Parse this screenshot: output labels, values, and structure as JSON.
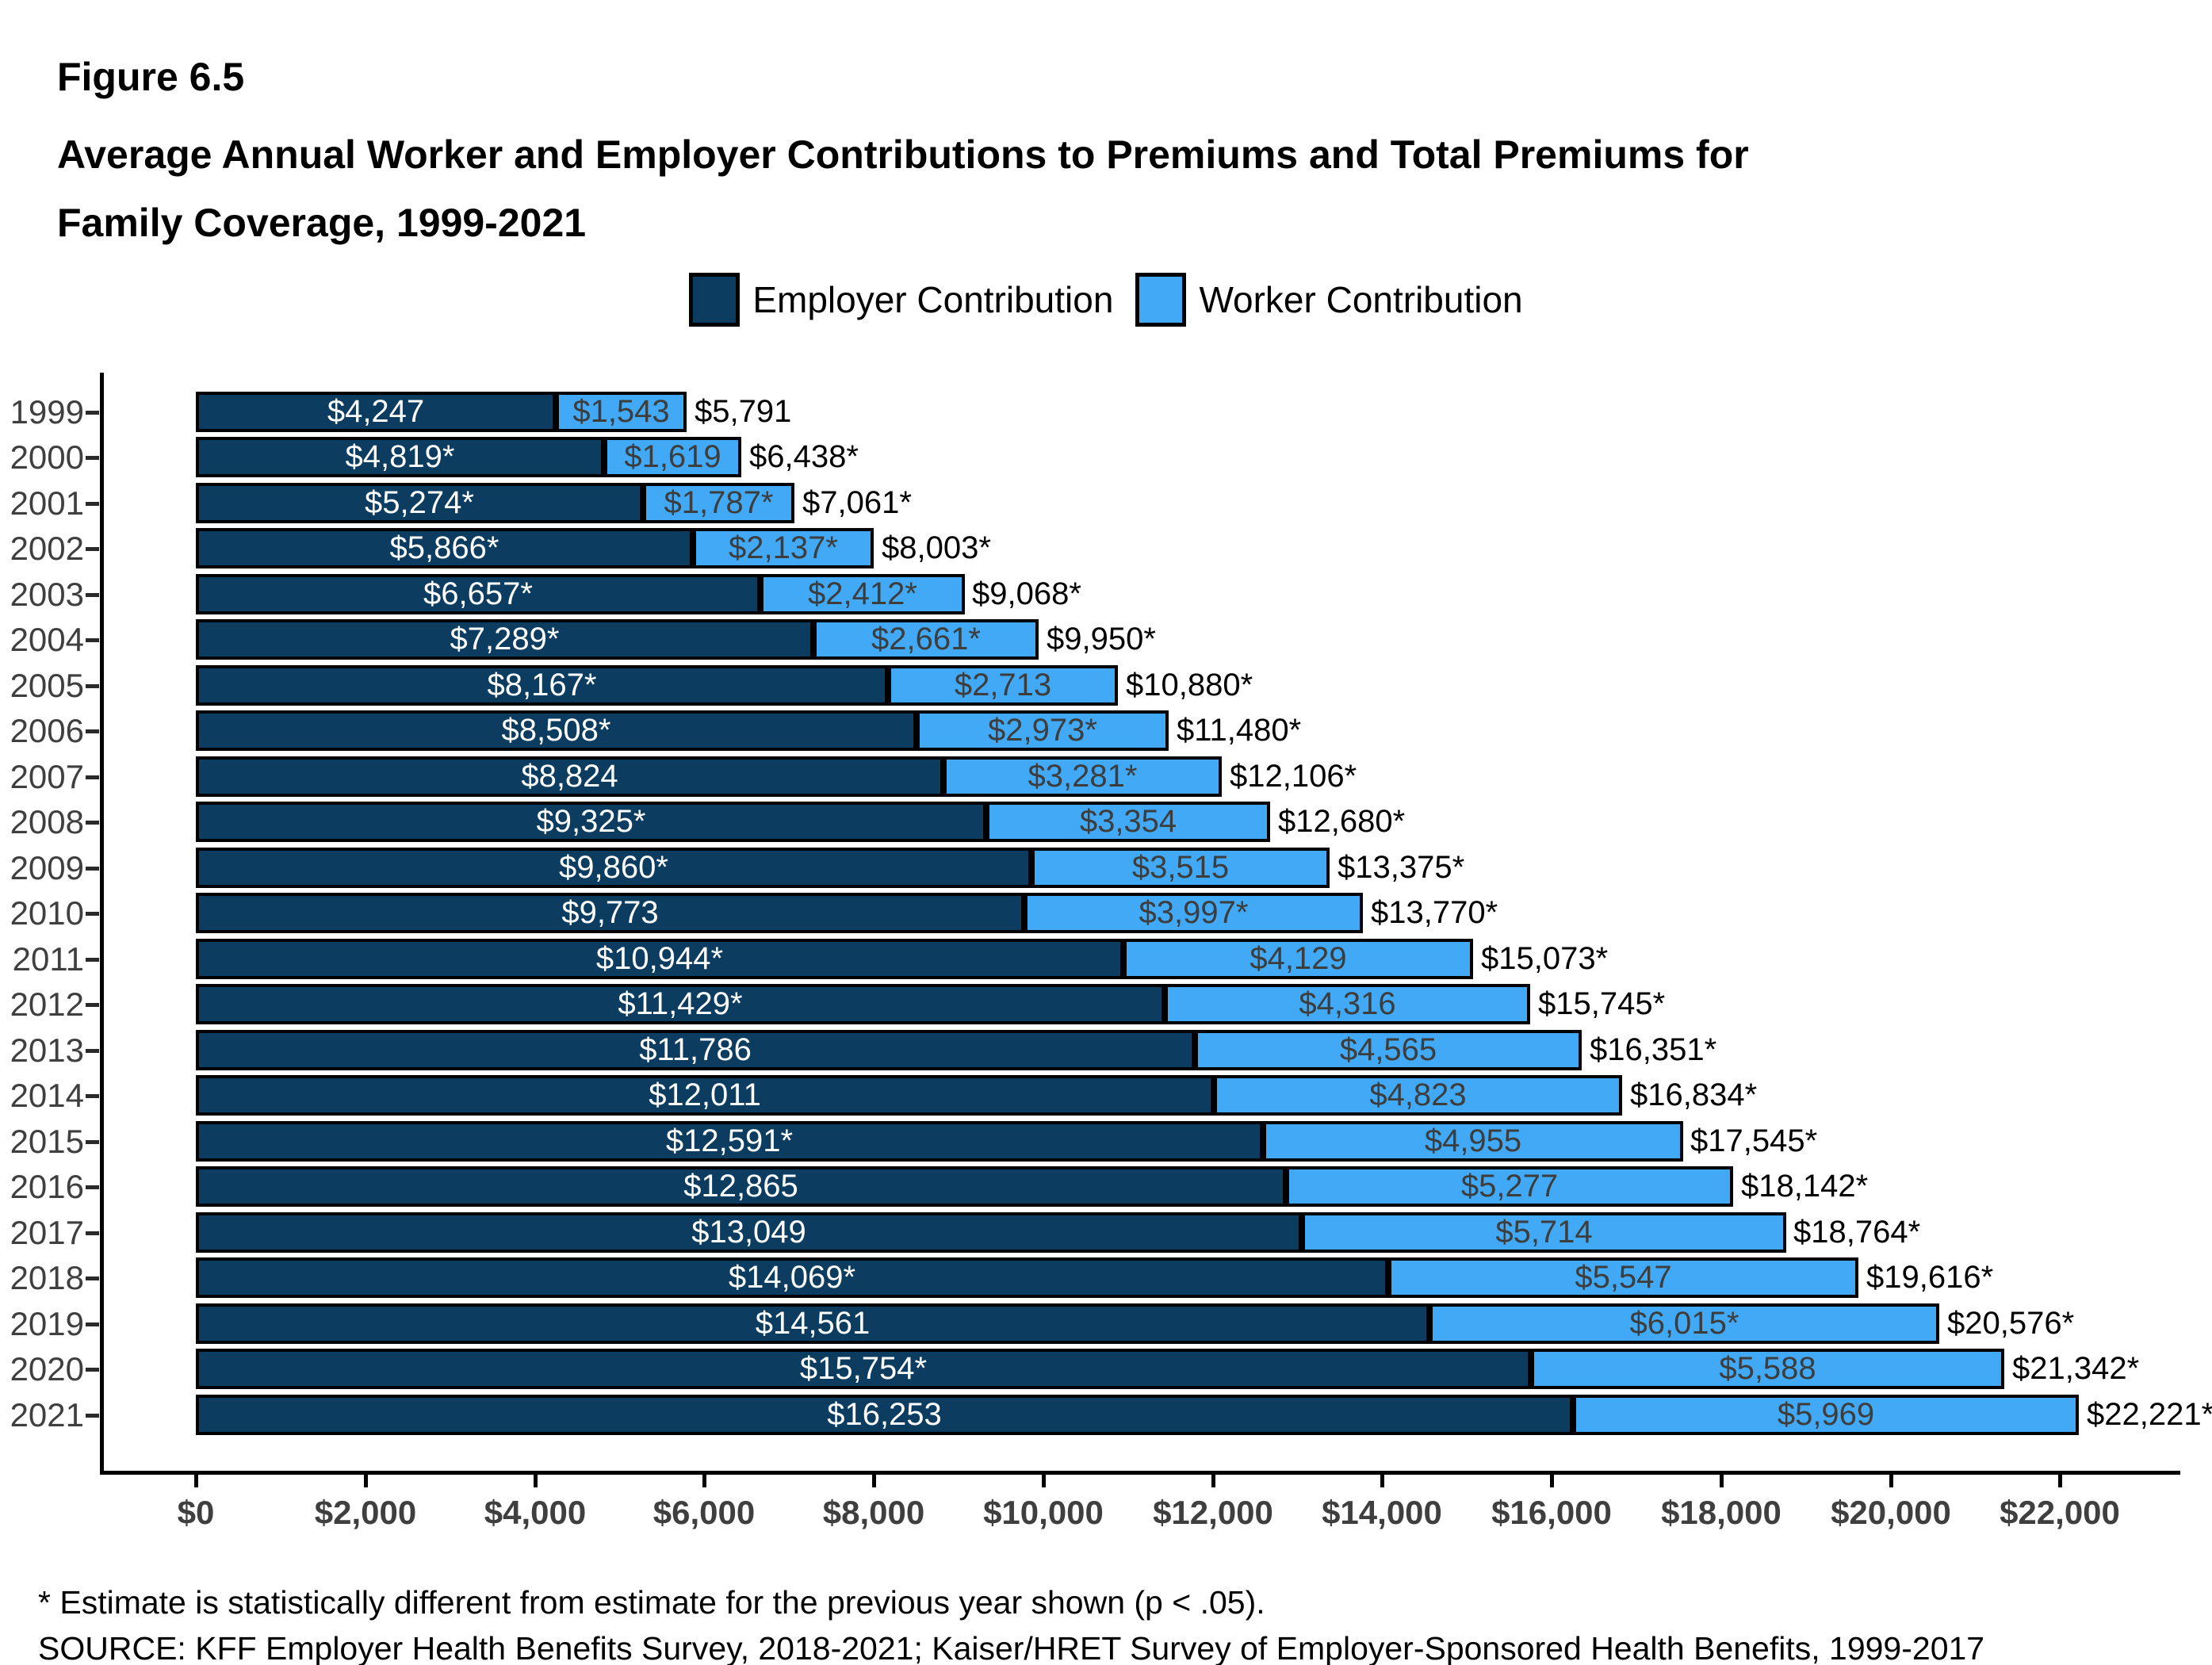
{
  "figure_label": "Figure 6.5",
  "title_line1": "Average Annual Worker and Employer Contributions to Premiums and Total Premiums for",
  "title_line2": "Family Coverage, 1999-2021",
  "legend": {
    "items": [
      {
        "label": "Employer Contribution",
        "color": "#0C3D61"
      },
      {
        "label": "Worker Contribution",
        "color": "#41A9F5"
      }
    ]
  },
  "colors": {
    "employer_fill": "#0C3D61",
    "worker_fill": "#41A9F5",
    "bar_border": "#000000",
    "employer_label_text": "#ffffff",
    "worker_label_text": "#3d3d3d",
    "total_label_text": "#000000",
    "axis_text": "#3f3f3f",
    "axis_line": "#000000"
  },
  "chart_data": {
    "type": "bar",
    "orientation": "horizontal",
    "stacked": true,
    "title": "Average Annual Worker and Employer Contributions to Premiums and Total Premiums for Family Coverage, 1999-2021",
    "categories": [
      "1999",
      "2000",
      "2001",
      "2002",
      "2003",
      "2004",
      "2005",
      "2006",
      "2007",
      "2008",
      "2009",
      "2010",
      "2011",
      "2012",
      "2013",
      "2014",
      "2015",
      "2016",
      "2017",
      "2018",
      "2019",
      "2020",
      "2021"
    ],
    "series": [
      {
        "name": "Employer Contribution",
        "values": [
          4247,
          4819,
          5274,
          5866,
          6657,
          7289,
          8167,
          8508,
          8824,
          9325,
          9860,
          9773,
          10944,
          11429,
          11786,
          12011,
          12591,
          12865,
          13049,
          14069,
          14561,
          15754,
          16253
        ],
        "labels": [
          "$4,247",
          "$4,819*",
          "$5,274*",
          "$5,866*",
          "$6,657*",
          "$7,289*",
          "$8,167*",
          "$8,508*",
          "$8,824",
          "$9,325*",
          "$9,860*",
          "$9,773",
          "$10,944*",
          "$11,429*",
          "$11,786",
          "$12,011",
          "$12,591*",
          "$12,865",
          "$13,049",
          "$14,069*",
          "$14,561",
          "$15,754*",
          "$16,253"
        ]
      },
      {
        "name": "Worker Contribution",
        "values": [
          1543,
          1619,
          1787,
          2137,
          2412,
          2661,
          2713,
          2973,
          3281,
          3354,
          3515,
          3997,
          4129,
          4316,
          4565,
          4823,
          4955,
          5277,
          5714,
          5547,
          6015,
          5588,
          5969
        ],
        "labels": [
          "$1,543",
          "$1,619",
          "$1,787*",
          "$2,137*",
          "$2,412*",
          "$2,661*",
          "$2,713",
          "$2,973*",
          "$3,281*",
          "$3,354",
          "$3,515",
          "$3,997*",
          "$4,129",
          "$4,316",
          "$4,565",
          "$4,823",
          "$4,955",
          "$5,277",
          "$5,714",
          "$5,547",
          "$6,015*",
          "$5,588",
          "$5,969"
        ]
      }
    ],
    "totals": {
      "values": [
        5791,
        6438,
        7061,
        8003,
        9068,
        9950,
        10880,
        11480,
        12106,
        12680,
        13375,
        13770,
        15073,
        15745,
        16351,
        16834,
        17545,
        18142,
        18764,
        19616,
        20576,
        21342,
        22221
      ],
      "labels": [
        "$5,791",
        "$6,438*",
        "$7,061*",
        "$8,003*",
        "$9,068*",
        "$9,950*",
        "$10,880*",
        "$11,480*",
        "$12,106*",
        "$12,680*",
        "$13,375*",
        "$13,770*",
        "$15,073*",
        "$15,745*",
        "$16,351*",
        "$16,834*",
        "$17,545*",
        "$18,142*",
        "$18,764*",
        "$19,616*",
        "$20,576*",
        "$21,342*",
        "$22,221*"
      ]
    },
    "xlim": [
      0,
      23400
    ],
    "x_ticks": [
      {
        "value": 0,
        "label": "$0"
      },
      {
        "value": 2000,
        "label": "$2,000"
      },
      {
        "value": 4000,
        "label": "$4,000"
      },
      {
        "value": 6000,
        "label": "$6,000"
      },
      {
        "value": 8000,
        "label": "$8,000"
      },
      {
        "value": 10000,
        "label": "$10,000"
      },
      {
        "value": 12000,
        "label": "$12,000"
      },
      {
        "value": 14000,
        "label": "$14,000"
      },
      {
        "value": 16000,
        "label": "$16,000"
      },
      {
        "value": 18000,
        "label": "$18,000"
      },
      {
        "value": 20000,
        "label": "$20,000"
      },
      {
        "value": 22000,
        "label": "$22,000"
      }
    ],
    "grid": false,
    "legend_position": "top"
  },
  "footnotes": {
    "asterisk": "* Estimate is statistically different from estimate for the previous year shown (p < .05).",
    "source": "SOURCE: KFF Employer Health Benefits Survey, 2018-2021; Kaiser/HRET Survey of Employer-Sponsored Health Benefits, 1999-2017"
  }
}
